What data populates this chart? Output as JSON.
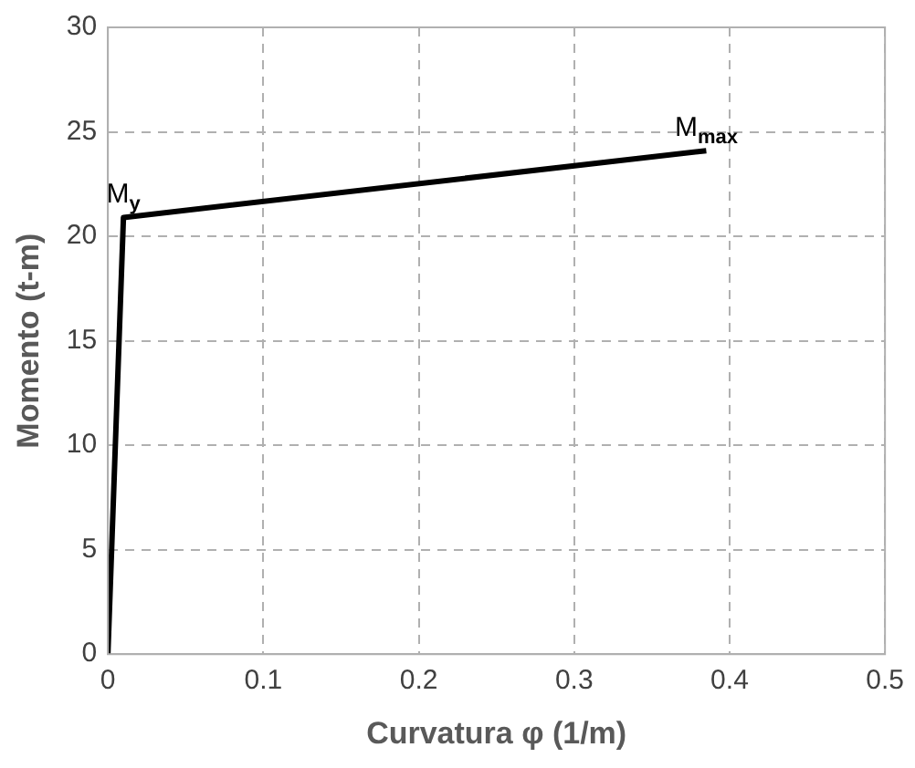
{
  "chart_data": {
    "type": "line",
    "xlabel": "Curvatura φ (1/m)",
    "ylabel": "Momento (t-m)",
    "series": [
      {
        "x": [
          0,
          0.01,
          0.385
        ],
        "values": [
          0,
          20.9,
          24.1
        ],
        "color": "#000000"
      }
    ],
    "xlim": [
      0,
      0.5
    ],
    "xticks": [
      0,
      0.1,
      0.2,
      0.3,
      0.4,
      0.5
    ],
    "ylim": [
      0,
      30
    ],
    "yticks": [
      0,
      5,
      10,
      15,
      20,
      25,
      30
    ],
    "grid": true,
    "legend": false,
    "marker": "none",
    "line_style": "solid",
    "annotations": [
      {
        "text": "M$_{y}$",
        "x": 0.01,
        "y": 20.9
      },
      {
        "text": "M$_{max}$",
        "x": 0.385,
        "y": 24.1
      }
    ]
  }
}
